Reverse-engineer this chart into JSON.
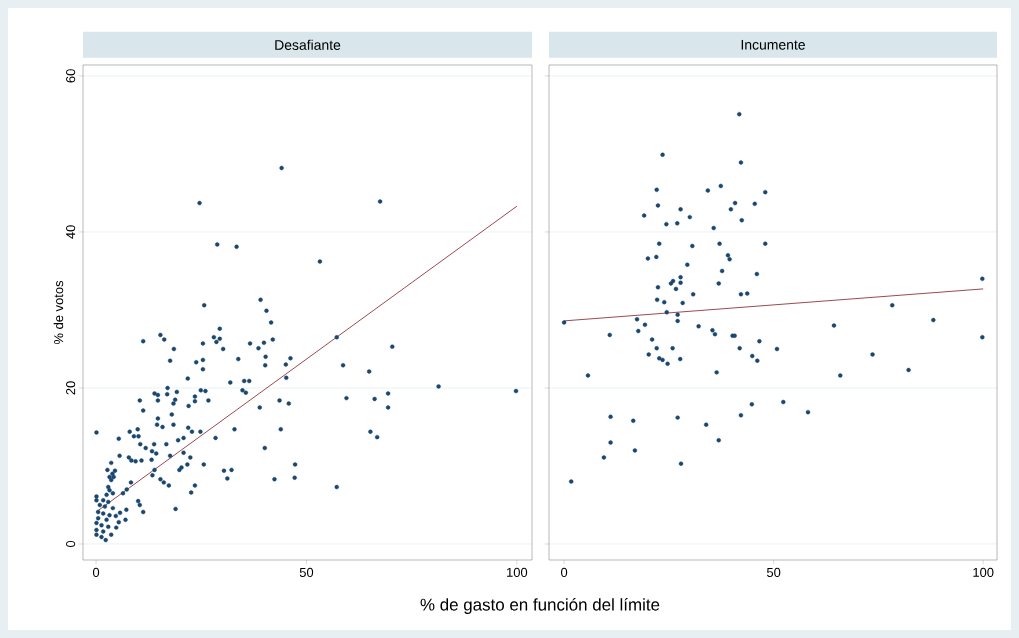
{
  "chart_data": [
    {
      "type": "scatter",
      "title": "Desafiante",
      "xlabel": "% de gasto en función del límite",
      "ylabel": "% de votos",
      "xlim": [
        -3.1,
        103.6
      ],
      "ylim": [
        -2.05,
        61.4
      ],
      "xticks": [
        0,
        50,
        100
      ],
      "yticks": [
        0,
        20,
        40,
        60
      ],
      "grid": "y",
      "series": [
        {
          "marker": "circle",
          "color": "#1a476f",
          "x": [
            44.1,
            24.6,
            67.5,
            28.8,
            33.4,
            53.2,
            25.7,
            39.1,
            40.5,
            41.6,
            11.2,
            15.3,
            16.2,
            18.5,
            17.6,
            28.0,
            29.4,
            28.6,
            29.4,
            25.4,
            30.2,
            36.6,
            38.6,
            39.9,
            42.0,
            57.2,
            70.4,
            23.8,
            25.4,
            25.4,
            33.8,
            40.3,
            40.2,
            45.1,
            46.2,
            45.2,
            58.7,
            64.9,
            21.8,
            31.9,
            35.2,
            36.4,
            81.4,
            99.8,
            17.0,
            13.9,
            14.7,
            16.9,
            19.2,
            24.9,
            26.0,
            34.8,
            35.6,
            69.4,
            10.4,
            14.7,
            18.8,
            18.4,
            23.5,
            23.5,
            26.7,
            22.0,
            43.6,
            45.8,
            59.5,
            66.2,
            69.4,
            38.9,
            43.9,
            40.1,
            47.3,
            42.4,
            47.2,
            57.2,
            65.2,
            66.8,
            11.2,
            18.0,
            14.7,
            14.5,
            15.8,
            18.4,
            21.9,
            22.8,
            24.8,
            32.9,
            0.1,
            8.0,
            9.9,
            9.0,
            10.1,
            5.4,
            10.5,
            13.8,
            16.7,
            19.5,
            20.8,
            28.4,
            11.8,
            13.3,
            14.3,
            5.6,
            7.8,
            8.4,
            9.4,
            10.8,
            13.2,
            17.6,
            20.8,
            22.4,
            21.7,
            25.6,
            3.6,
            4.5,
            3.9,
            4.2,
            13.9,
            20.3,
            19.8,
            30.4,
            32.2,
            31.2,
            13.4,
            15.3,
            16.1,
            17.3,
            8.3,
            3.6,
            7.3,
            6.4,
            23.5,
            22.6,
            18.9,
            10.0,
            10.4,
            11.2,
            7.2,
            5.7,
            7.0,
            5.4,
            4.8,
            4.7,
            0.1,
            0.1,
            2.9,
            3.2,
            2.5,
            4.0,
            1.7,
            2.9,
            0.9,
            2.1,
            4.0,
            0.5,
            1.7,
            3.2,
            0.5,
            2.5,
            0.1,
            1.3,
            2.9,
            0.1,
            1.7,
            0.1,
            1.3,
            2.3,
            3.6,
            3.2,
            2.7
          ],
          "values": [
            48.2,
            43.7,
            43.9,
            38.4,
            38.1,
            36.2,
            30.6,
            31.3,
            29.9,
            28.4,
            26.0,
            26.8,
            26.2,
            25.0,
            23.5,
            26.5,
            27.6,
            25.9,
            26.3,
            25.7,
            25.0,
            25.7,
            25.1,
            25.8,
            26.2,
            26.5,
            25.3,
            23.3,
            23.6,
            22.4,
            23.7,
            24.0,
            22.9,
            23.0,
            23.8,
            21.3,
            22.9,
            22.1,
            21.2,
            20.7,
            20.9,
            20.9,
            20.2,
            19.6,
            20.0,
            19.3,
            19.1,
            19.2,
            19.5,
            19.7,
            19.6,
            19.7,
            19.4,
            19.3,
            18.4,
            18.4,
            18.5,
            18.0,
            18.9,
            18.3,
            18.4,
            17.7,
            18.4,
            18.0,
            18.7,
            18.6,
            17.5,
            17.5,
            14.7,
            12.3,
            10.2,
            8.3,
            8.5,
            7.3,
            14.4,
            13.7,
            17.1,
            16.6,
            16.1,
            15.3,
            15.0,
            15.3,
            14.9,
            14.4,
            14.4,
            14.7,
            14.3,
            14.4,
            14.7,
            13.8,
            13.8,
            13.5,
            12.8,
            12.8,
            12.8,
            13.3,
            13.6,
            13.6,
            12.3,
            11.9,
            11.6,
            11.3,
            11.1,
            10.7,
            10.6,
            10.7,
            10.8,
            11.3,
            11.7,
            11.1,
            10.2,
            10.2,
            10.4,
            9.4,
            9.0,
            8.6,
            9.5,
            9.8,
            9.5,
            9.4,
            9.5,
            8.4,
            8.8,
            8.3,
            7.9,
            7.5,
            7.9,
            8.2,
            7.0,
            6.5,
            7.5,
            6.6,
            4.5,
            5.5,
            5.0,
            4.1,
            4.4,
            4.0,
            3.1,
            2.8,
            2.1,
            3.6,
            6.1,
            5.6,
            7.3,
            6.9,
            6.3,
            6.5,
            5.6,
            5.4,
            5.0,
            4.8,
            4.6,
            4.1,
            3.9,
            3.7,
            3.3,
            3.1,
            2.7,
            2.4,
            2.2,
            1.8,
            1.6,
            1.2,
            0.9,
            0.5,
            1.2,
            8.6,
            9.5
          ]
        },
        {
          "type": "line",
          "marker": "none",
          "color": "#90353b",
          "x": [
            0,
            100
          ],
          "values": [
            4.1,
            43.3
          ]
        }
      ]
    },
    {
      "type": "scatter",
      "title": "Incumente",
      "xlim": [
        -3.6,
        103.3
      ],
      "ylim": [
        -2.05,
        61.4
      ],
      "xticks": [
        0,
        50,
        100
      ],
      "yticks": [
        0,
        20,
        40,
        60
      ],
      "grid": "y",
      "tick_labels": "x",
      "series": [
        {
          "marker": "circle",
          "color": "#1a476f",
          "x": [
            41.8,
            23.5,
            42.2,
            22.1,
            34.3,
            37.4,
            48.0,
            22.4,
            27.8,
            19.1,
            30.0,
            40.8,
            39.8,
            45.5,
            42.4,
            24.4,
            27.0,
            35.7,
            22.7,
            30.6,
            37.1,
            48.0,
            20.0,
            22.0,
            39.1,
            39.5,
            29.4,
            37.7,
            46.0,
            27.8,
            25.5,
            26.0,
            27.8,
            36.9,
            22.4,
            26.7,
            30.8,
            42.2,
            43.7,
            99.8,
            22.2,
            23.9,
            28.3,
            78.3,
            24.5,
            27.1,
            0,
            17.4,
            27.1,
            88.1,
            19.3,
            17.7,
            32.1,
            35.4,
            36.0,
            64.4,
            10.9,
            21.0,
            40.2,
            40.7,
            46.6,
            99.8,
            22.1,
            25.9,
            41.9,
            50.8,
            20.2,
            22.7,
            23.5,
            24.7,
            27.7,
            44.9,
            46.1,
            73.6,
            5.7,
            36.4,
            65.9,
            82.2,
            52.3,
            44.8,
            58.2,
            42.2,
            11.1,
            27.1,
            16.5,
            33.9,
            11.1,
            36.9,
            16.9,
            9.5,
            27.9,
            1.7
          ],
          "values": [
            55.1,
            49.9,
            48.9,
            45.4,
            45.3,
            45.9,
            45.1,
            43.4,
            42.9,
            42.1,
            41.9,
            43.7,
            42.9,
            43.6,
            41.5,
            41.0,
            41.1,
            40.5,
            38.5,
            38.2,
            38.5,
            38.5,
            36.6,
            36.8,
            37.0,
            36.5,
            35.8,
            35.0,
            34.6,
            34.2,
            33.4,
            33.7,
            33.5,
            33.4,
            32.9,
            32.7,
            32.0,
            32.0,
            32.1,
            34.0,
            31.3,
            31.0,
            30.9,
            30.6,
            29.7,
            29.4,
            28.4,
            28.8,
            28.6,
            28.7,
            28.1,
            27.3,
            27.9,
            27.4,
            26.9,
            28.0,
            26.8,
            26.2,
            26.7,
            26.7,
            26.0,
            26.5,
            25.1,
            25.1,
            25.1,
            25.0,
            24.3,
            23.8,
            23.6,
            23.1,
            23.7,
            24.1,
            23.5,
            24.3,
            21.6,
            22.0,
            21.6,
            22.3,
            18.2,
            17.9,
            16.9,
            16.5,
            16.3,
            16.2,
            15.8,
            15.3,
            13.0,
            13.3,
            12.0,
            11.1,
            10.3,
            8.0
          ]
        },
        {
          "type": "line",
          "marker": "none",
          "color": "#90353b",
          "x": [
            0,
            100
          ],
          "values": [
            28.6,
            32.7
          ]
        }
      ]
    }
  ]
}
